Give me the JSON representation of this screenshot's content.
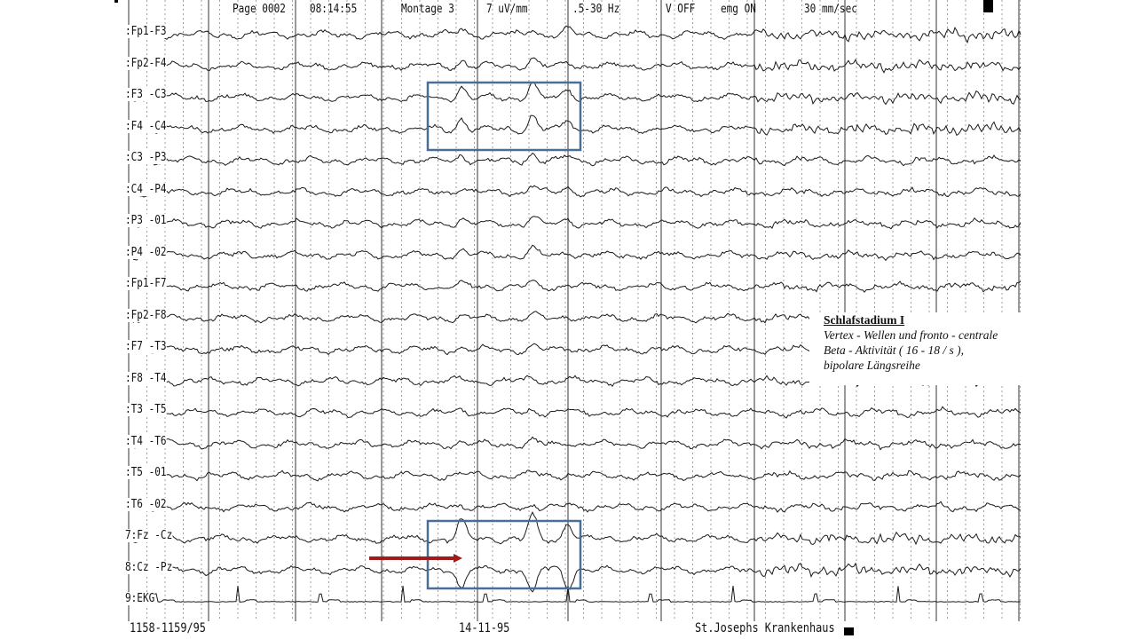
{
  "header": {
    "page": "Page 0002",
    "time": "08:14:55",
    "montage": "Montage  3",
    "sensitivity": "7 uV/mm",
    "filter": ".5-30 Hz",
    "notch": "V OFF",
    "emg": "emg ON",
    "speed": "30  mm/sec"
  },
  "channels": [
    ":Fp1-F3",
    ":Fp2-F4",
    ":F3 -C3",
    ":F4 -C4",
    ":C3 -P3",
    ":C4 -P4",
    ":P3 -01",
    ":P4 -02",
    ":Fp1-F7",
    ":Fp2-F8",
    ":F7 -T3",
    ":F8 -T4",
    ":T3 -T5",
    ":T4 -T6",
    ":T5 -01",
    ":T6 -02",
    "7:Fz -Cz",
    "8:Cz -Pz",
    "9:EKG"
  ],
  "footer": {
    "record_id": "1158-1159/95",
    "date": "14-11-95",
    "hospital": "St.Josephs Krankenhaus"
  },
  "annotation": {
    "title": "Schlafstadium I",
    "line1": "Vertex - Wellen und fronto - centrale",
    "line2": "Beta - Aktivität ( 16 - 18 / s ),",
    "line3": "bipolare Längsreihe"
  },
  "colors": {
    "highlight_box": "#4a6f97",
    "arrow": "#a01c1c",
    "trace": "#1a1a1a"
  }
}
